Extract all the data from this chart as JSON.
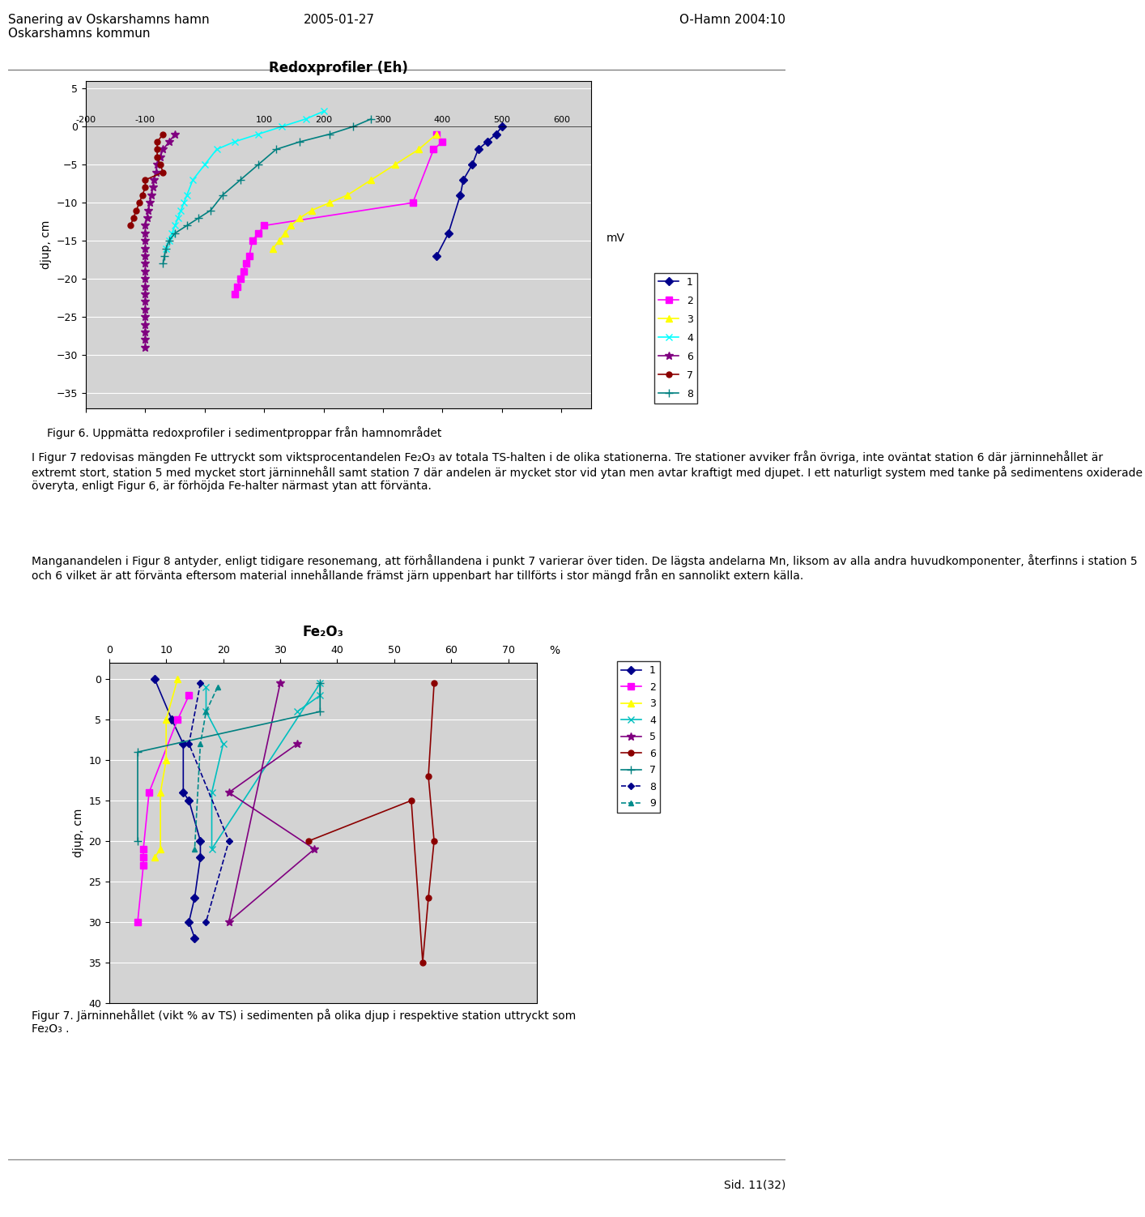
{
  "header_left": "Sanering av Oskarshamns hamn\nOskarshamns kommun",
  "header_center": "2005-01-27",
  "header_right": "O-Hamn 2004:10",
  "fig6_caption": "Figur 6. Uppmätta redoxprofiler i sedimentproppar från hamnområdet",
  "fig7_caption": "Figur 7. Järninnehållet (vikt % av TS) i sedimenten på olika djup i respektive station uttryckt som Fe₂O₃ .",
  "body_text1": "I Figur 7 redovisas mängden Fe uttryckt som viktsprocentandelen Fe₂O₃ av totala TS-halten i de olika stationerna. Tre stationer avviker från övriga, inte oväntat station 6 där järninnehållet är extremt stort, station 5 med mycket stort järninnehåll samt station 7 där andelen är mycket stor vid ytan men avtar kraftigt med djupet. I ett naturligt system med tanke på sedimentens oxiderade överyta, enligt Figur 6, är förhöjda Fe-halter närmast ytan att förvänta.",
  "body_text2": "Manganandelen i Figur 8 antyder, enligt tidigare resonemang, att förhållandena i punkt 7 varierar över tiden. De lägsta andelarna Mn, liksom av alla andra huvudkomponenter, återfinns i station 5 och 6 vilket är att förvänta eftersom material innehållande främst järn uppenbart har tillförts i stor mängd från en sannolikt extern källa.",
  "page_num": "Sid. 11(32)",
  "chart1_title": "Redoxprofiler (Eh)",
  "chart1_xlabel": "mV",
  "chart1_ylabel": "djup, cm",
  "chart1_xlim": [
    -200,
    650
  ],
  "chart1_ylim": [
    -37,
    6
  ],
  "chart1_xticks": [
    -200,
    -100,
    0,
    100,
    200,
    300,
    400,
    500,
    600
  ],
  "chart1_yticks": [
    5,
    0,
    -5,
    -10,
    -15,
    -20,
    -25,
    -30,
    -35
  ],
  "chart1_series": [
    {
      "label": "1",
      "color": "#00008B",
      "marker": "D",
      "markersize": 5,
      "x": [
        500,
        490,
        475,
        460,
        450,
        435,
        430,
        410,
        390
      ],
      "y": [
        0,
        -1,
        -2,
        -3,
        -5,
        -7,
        -9,
        -14,
        -17
      ]
    },
    {
      "label": "2",
      "color": "#FF00FF",
      "marker": "s",
      "markersize": 6,
      "x": [
        390,
        400,
        385,
        350,
        100,
        90,
        80,
        75,
        70,
        65,
        60,
        55,
        50
      ],
      "y": [
        -1,
        -2,
        -3,
        -10,
        -13,
        -14,
        -15,
        -17,
        -18,
        -19,
        -20,
        -21,
        -22
      ]
    },
    {
      "label": "3",
      "color": "#FFFF00",
      "marker": "^",
      "markersize": 6,
      "x": [
        390,
        360,
        320,
        280,
        240,
        210,
        180,
        160,
        145,
        135,
        125,
        115
      ],
      "y": [
        -1,
        -3,
        -5,
        -7,
        -9,
        -10,
        -11,
        -12,
        -13,
        -14,
        -15,
        -16
      ]
    },
    {
      "label": "4",
      "color": "#00FFFF",
      "marker": "x",
      "markersize": 6,
      "x": [
        200,
        170,
        130,
        90,
        50,
        20,
        0,
        -20,
        -30,
        -35,
        -40,
        -45,
        -50,
        -55,
        -60,
        -65
      ],
      "y": [
        2,
        1,
        0,
        -1,
        -2,
        -3,
        -5,
        -7,
        -9,
        -10,
        -11,
        -12,
        -13,
        -14,
        -15,
        -16
      ]
    },
    {
      "label": "6",
      "color": "#800080",
      "marker": "*",
      "markersize": 7,
      "x": [
        -50,
        -60,
        -70,
        -75,
        -80,
        -82,
        -85,
        -87,
        -90,
        -92,
        -95,
        -97,
        -100,
        -100,
        -100,
        -100,
        -100,
        -100,
        -100,
        -100,
        -100,
        -100,
        -100,
        -100,
        -100,
        -100,
        -100,
        -100,
        -100
      ],
      "y": [
        -1,
        -2,
        -3,
        -4,
        -5,
        -6,
        -7,
        -8,
        -9,
        -10,
        -11,
        -12,
        -13,
        -14,
        -15,
        -16,
        -17,
        -18,
        -19,
        -20,
        -21,
        -22,
        -23,
        -24,
        -25,
        -26,
        -27,
        -28,
        -29
      ]
    },
    {
      "label": "7",
      "color": "#8B0000",
      "marker": "o",
      "markersize": 5,
      "x": [
        -70,
        -80,
        -80,
        -80,
        -75,
        -70,
        -100,
        -100,
        -105,
        -110,
        -115,
        -120,
        -125
      ],
      "y": [
        -1,
        -2,
        -3,
        -4,
        -5,
        -6,
        -7,
        -8,
        -9,
        -10,
        -11,
        -12,
        -13
      ]
    },
    {
      "label": "8",
      "color": "#008080",
      "marker": "+",
      "markersize": 7,
      "x": [
        280,
        250,
        210,
        160,
        120,
        90,
        60,
        30,
        10,
        -10,
        -30,
        -50,
        -60,
        -65,
        -68,
        -70
      ],
      "y": [
        1,
        0,
        -1,
        -2,
        -3,
        -5,
        -7,
        -9,
        -11,
        -12,
        -13,
        -14,
        -15,
        -16,
        -17,
        -18
      ]
    }
  ],
  "chart2_title": "Fe₂O₃",
  "chart2_xlabel": "%",
  "chart2_ylabel": "djup, cm",
  "chart2_xlim": [
    0,
    75
  ],
  "chart2_ylim": [
    40,
    -2
  ],
  "chart2_xticks": [
    0,
    10,
    20,
    30,
    40,
    50,
    60,
    70
  ],
  "chart2_yticks": [
    0,
    5,
    10,
    15,
    20,
    25,
    30,
    35,
    40
  ],
  "chart2_series": [
    {
      "label": "1",
      "color": "#00008B",
      "marker": "D",
      "markersize": 5,
      "x": [
        8,
        11,
        13,
        13,
        14,
        16,
        16,
        15,
        14,
        15
      ],
      "y": [
        0,
        5,
        8,
        14,
        15,
        20,
        22,
        27,
        30,
        32
      ]
    },
    {
      "label": "2",
      "color": "#FF00FF",
      "marker": "s",
      "markersize": 6,
      "x": [
        14,
        12,
        7,
        6,
        6,
        6,
        5
      ],
      "y": [
        2,
        5,
        14,
        21,
        22,
        23,
        30
      ]
    },
    {
      "label": "3",
      "color": "#FFFF00",
      "marker": "^",
      "markersize": 6,
      "x": [
        12,
        10,
        10,
        9,
        9,
        8
      ],
      "y": [
        0,
        5,
        10,
        14,
        21,
        22
      ]
    },
    {
      "label": "4",
      "color": "#00BFBF",
      "marker": "x",
      "markersize": 6,
      "x": [
        17,
        17,
        20,
        18,
        18,
        37,
        37,
        33
      ],
      "y": [
        1,
        4,
        8,
        14,
        21,
        0.5,
        2,
        4
      ]
    },
    {
      "label": "5",
      "color": "#800080",
      "marker": "*",
      "markersize": 7,
      "x": [
        33,
        21,
        36,
        21,
        30
      ],
      "y": [
        8,
        14,
        21,
        30,
        0.5
      ]
    },
    {
      "label": "6",
      "color": "#8B0000",
      "marker": "o",
      "markersize": 5,
      "x": [
        57,
        56,
        57,
        56,
        55,
        53,
        35
      ],
      "y": [
        0.5,
        12,
        20,
        27,
        35,
        15,
        20
      ]
    },
    {
      "label": "7",
      "color": "#008080",
      "marker": "+",
      "markersize": 7,
      "x": [
        37,
        37,
        5,
        5
      ],
      "y": [
        0.5,
        4,
        9,
        20
      ]
    },
    {
      "label": "8",
      "color": "#00008B",
      "marker": "D",
      "markersize": 4,
      "linestyle": "--",
      "x": [
        16,
        14,
        21,
        17
      ],
      "y": [
        0.5,
        8,
        20,
        30
      ]
    },
    {
      "label": "9",
      "color": "#008B8B",
      "marker": "^",
      "markersize": 4,
      "linestyle": "--",
      "x": [
        19,
        17,
        16,
        15
      ],
      "y": [
        1,
        4,
        8,
        21
      ]
    }
  ]
}
